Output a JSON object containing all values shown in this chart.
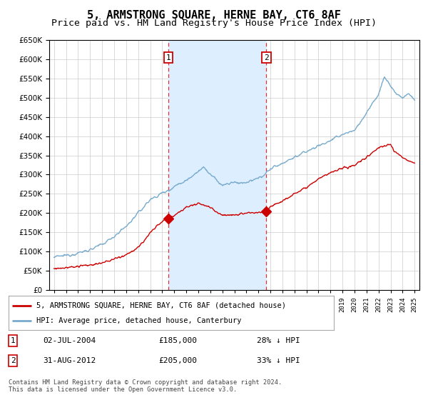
{
  "title": "5, ARMSTRONG SQUARE, HERNE BAY, CT6 8AF",
  "subtitle": "Price paid vs. HM Land Registry's House Price Index (HPI)",
  "legend_line1": "5, ARMSTRONG SQUARE, HERNE BAY, CT6 8AF (detached house)",
  "legend_line2": "HPI: Average price, detached house, Canterbury",
  "annotation1_date": "02-JUL-2004",
  "annotation1_price": "£185,000",
  "annotation1_hpi": "28% ↓ HPI",
  "annotation1_year": 2004.5,
  "annotation1_value": 185000,
  "annotation2_date": "31-AUG-2012",
  "annotation2_price": "£205,000",
  "annotation2_hpi": "33% ↓ HPI",
  "annotation2_year": 2012.67,
  "annotation2_value": 205000,
  "footer_line1": "Contains HM Land Registry data © Crown copyright and database right 2024.",
  "footer_line2": "This data is licensed under the Open Government Licence v3.0.",
  "ylim": [
    0,
    650000
  ],
  "xlim_start": 1994.6,
  "xlim_end": 2025.4,
  "red_color": "#cc0000",
  "blue_color": "#77aacc",
  "shade_color": "#ddeeff",
  "grid_color": "#cccccc",
  "background_color": "#ffffff",
  "title_fontsize": 11,
  "subtitle_fontsize": 9.5
}
